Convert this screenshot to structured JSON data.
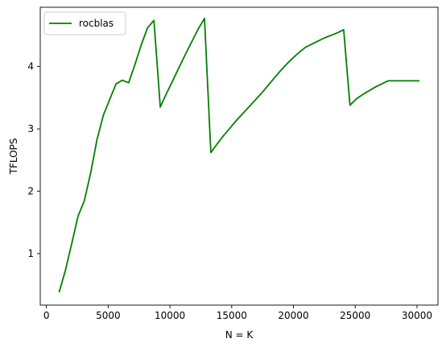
{
  "chart_data": {
    "type": "line",
    "title": "",
    "xlabel": "N = K",
    "ylabel": "TFLOPS",
    "xlim": [
      -500,
      31700
    ],
    "ylim": [
      0.175,
      4.95
    ],
    "x_ticks": [
      0,
      5000,
      10000,
      15000,
      20000,
      25000,
      30000
    ],
    "y_ticks": [
      1,
      2,
      3,
      4
    ],
    "grid": false,
    "legend_position": "top-left",
    "series": [
      {
        "name": "rocblas",
        "color": "#008000",
        "x": [
          1024,
          1536,
          2048,
          2560,
          3072,
          3584,
          4096,
          4608,
          5120,
          5632,
          6144,
          6656,
          7168,
          7680,
          8192,
          8704,
          9216,
          9728,
          10240,
          10752,
          11264,
          11776,
          12288,
          12800,
          13312,
          13824,
          14336,
          14848,
          15360,
          15872,
          16384,
          16896,
          17408,
          17920,
          18432,
          18944,
          19456,
          19968,
          20480,
          20992,
          21504,
          22016,
          22528,
          23040,
          23552,
          24064,
          24576,
          25088,
          25600,
          26112,
          26624,
          27136,
          27648,
          28160,
          28672,
          29184,
          29696,
          30208
        ],
        "y": [
          0.38,
          0.73,
          1.16,
          1.6,
          1.85,
          2.3,
          2.83,
          3.22,
          3.47,
          3.72,
          3.78,
          3.74,
          4.03,
          4.35,
          4.62,
          4.74,
          3.35,
          3.57,
          3.78,
          3.99,
          4.2,
          4.4,
          4.6,
          4.77,
          2.62,
          2.76,
          2.89,
          3.01,
          3.13,
          3.24,
          3.35,
          3.46,
          3.57,
          3.69,
          3.81,
          3.93,
          4.04,
          4.14,
          4.23,
          4.31,
          4.36,
          4.41,
          4.46,
          4.5,
          4.54,
          4.59,
          3.38,
          3.48,
          3.55,
          3.61,
          3.67,
          3.72,
          3.77,
          3.77,
          3.77,
          3.77,
          3.77,
          3.77
        ]
      }
    ]
  }
}
